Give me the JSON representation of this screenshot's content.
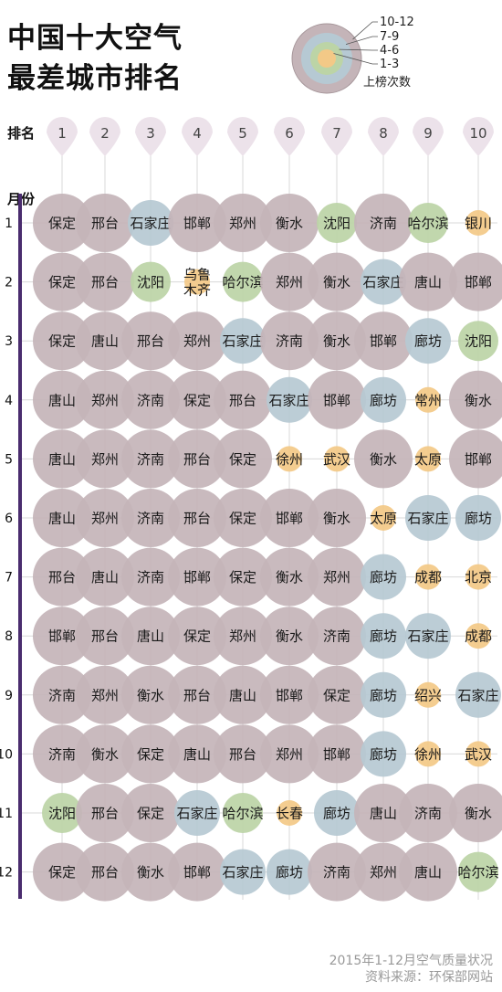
{
  "title_lines": [
    "中国十大空气",
    "最差城市排名"
  ],
  "legend": {
    "items": [
      "10-12",
      "7-9",
      "4-6",
      "1-3"
    ],
    "caption": "上榜次数",
    "colors": [
      "#c4b4b8",
      "#b6c9d3",
      "#bcd4a6",
      "#f3c987"
    ]
  },
  "rank_label": "排名",
  "month_label": "月份",
  "footer": [
    "2015年1-12月空气质量状况",
    "资料来源：环保部网站"
  ],
  "colors": {
    "accent": "#4a2c6e",
    "pin": "#ece2ea",
    "grid": "#d8d8d8"
  },
  "chart_data": {
    "type": "bubble-grid",
    "title": "中国十大空气最差城市排名",
    "xlabel": "排名",
    "ylabel": "月份",
    "ranks": [
      "1",
      "2",
      "3",
      "4",
      "5",
      "6",
      "7",
      "8",
      "9",
      "10"
    ],
    "months": [
      "1",
      "2",
      "3",
      "4",
      "5",
      "6",
      "7",
      "8",
      "9",
      "10",
      "11",
      "12"
    ],
    "appearance_tiers": [
      {
        "label": "10-12",
        "color": "#c4b4b8"
      },
      {
        "label": "7-9",
        "color": "#b6c9d3"
      },
      {
        "label": "4-6",
        "color": "#bcd4a6"
      },
      {
        "label": "1-3",
        "color": "#f3c987"
      }
    ],
    "rankings": [
      [
        "保定",
        "邢台",
        "石家庄",
        "邯郸",
        "郑州",
        "衡水",
        "沈阳",
        "济南",
        "哈尔滨",
        "银川"
      ],
      [
        "保定",
        "邢台",
        "沈阳",
        "乌鲁木齐",
        "哈尔滨",
        "郑州",
        "衡水",
        "石家庄",
        "唐山",
        "邯郸"
      ],
      [
        "保定",
        "唐山",
        "邢台",
        "郑州",
        "石家庄",
        "济南",
        "衡水",
        "邯郸",
        "廊坊",
        "沈阳"
      ],
      [
        "唐山",
        "郑州",
        "济南",
        "保定",
        "邢台",
        "石家庄",
        "邯郸",
        "廊坊",
        "常州",
        "衡水"
      ],
      [
        "唐山",
        "郑州",
        "济南",
        "邢台",
        "保定",
        "徐州",
        "武汉",
        "衡水",
        "太原",
        "邯郸"
      ],
      [
        "唐山",
        "郑州",
        "济南",
        "邢台",
        "保定",
        "邯郸",
        "衡水",
        "太原",
        "石家庄",
        "廊坊"
      ],
      [
        "邢台",
        "唐山",
        "济南",
        "邯郸",
        "保定",
        "衡水",
        "郑州",
        "廊坊",
        "成都",
        "北京"
      ],
      [
        "邯郸",
        "邢台",
        "唐山",
        "保定",
        "郑州",
        "衡水",
        "济南",
        "廊坊",
        "石家庄",
        "成都"
      ],
      [
        "济南",
        "郑州",
        "衡水",
        "邢台",
        "唐山",
        "邯郸",
        "保定",
        "廊坊",
        "绍兴",
        "石家庄"
      ],
      [
        "济南",
        "衡水",
        "保定",
        "唐山",
        "邢台",
        "郑州",
        "邯郸",
        "廊坊",
        "徐州",
        "武汉"
      ],
      [
        "沈阳",
        "邢台",
        "保定",
        "石家庄",
        "哈尔滨",
        "长春",
        "廊坊",
        "唐山",
        "济南",
        "衡水"
      ],
      [
        "保定",
        "邢台",
        "衡水",
        "邯郸",
        "石家庄",
        "廊坊",
        "济南",
        "郑州",
        "唐山",
        "哈尔滨"
      ]
    ],
    "city_tiers": {
      "保定": "10-12",
      "邢台": "10-12",
      "邯郸": "10-12",
      "郑州": "10-12",
      "衡水": "10-12",
      "济南": "10-12",
      "唐山": "10-12",
      "石家庄": "7-9",
      "廊坊": "7-9",
      "沈阳": "4-6",
      "哈尔滨": "4-6",
      "银川": "1-3",
      "乌鲁木齐": "1-3",
      "常州": "1-3",
      "徐州": "1-3",
      "武汉": "1-3",
      "太原": "1-3",
      "成都": "1-3",
      "北京": "1-3",
      "绍兴": "1-3",
      "长春": "1-3"
    }
  }
}
